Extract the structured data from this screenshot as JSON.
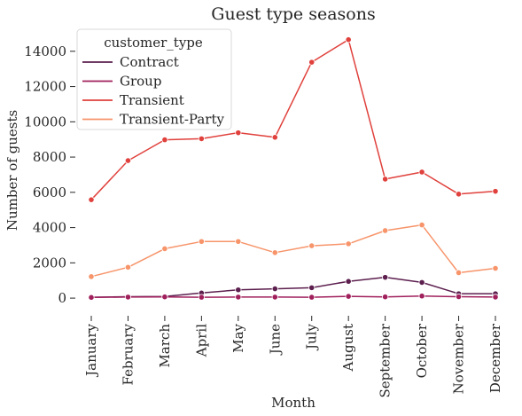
{
  "chart_data": {
    "type": "line",
    "title": "Guest type seasons",
    "xlabel": "Month",
    "ylabel": "Number of guests",
    "categories": [
      "January",
      "February",
      "March",
      "April",
      "May",
      "June",
      "July",
      "August",
      "September",
      "October",
      "November",
      "December"
    ],
    "ylim": [
      -800,
      15500
    ],
    "yticks": [
      0,
      2000,
      4000,
      6000,
      8000,
      10000,
      12000,
      14000
    ],
    "ytick_labels": [
      "0",
      "2000",
      "4000",
      "6000",
      "8000",
      "10000",
      "12000",
      "14000"
    ],
    "grid": false,
    "markers": true,
    "legend": {
      "title": "customer_type",
      "placement": "top-left"
    },
    "series": [
      {
        "name": "Contract",
        "color": "#5c1f4e",
        "values": [
          50,
          80,
          90,
          290,
          470,
          530,
          590,
          950,
          1180,
          890,
          250,
          250
        ]
      },
      {
        "name": "Group",
        "color": "#a0205c",
        "values": [
          40,
          60,
          70,
          50,
          60,
          60,
          50,
          100,
          70,
          120,
          80,
          60
        ]
      },
      {
        "name": "Transient",
        "color": "#e0413c",
        "values": [
          5580,
          7800,
          8980,
          9040,
          9380,
          9120,
          13380,
          14660,
          6750,
          7150,
          5900,
          6060
        ]
      },
      {
        "name": "Transient-Party",
        "color": "#f7946a",
        "values": [
          1220,
          1750,
          2800,
          3210,
          3210,
          2580,
          2970,
          3080,
          3830,
          4150,
          1440,
          1690
        ]
      }
    ]
  }
}
